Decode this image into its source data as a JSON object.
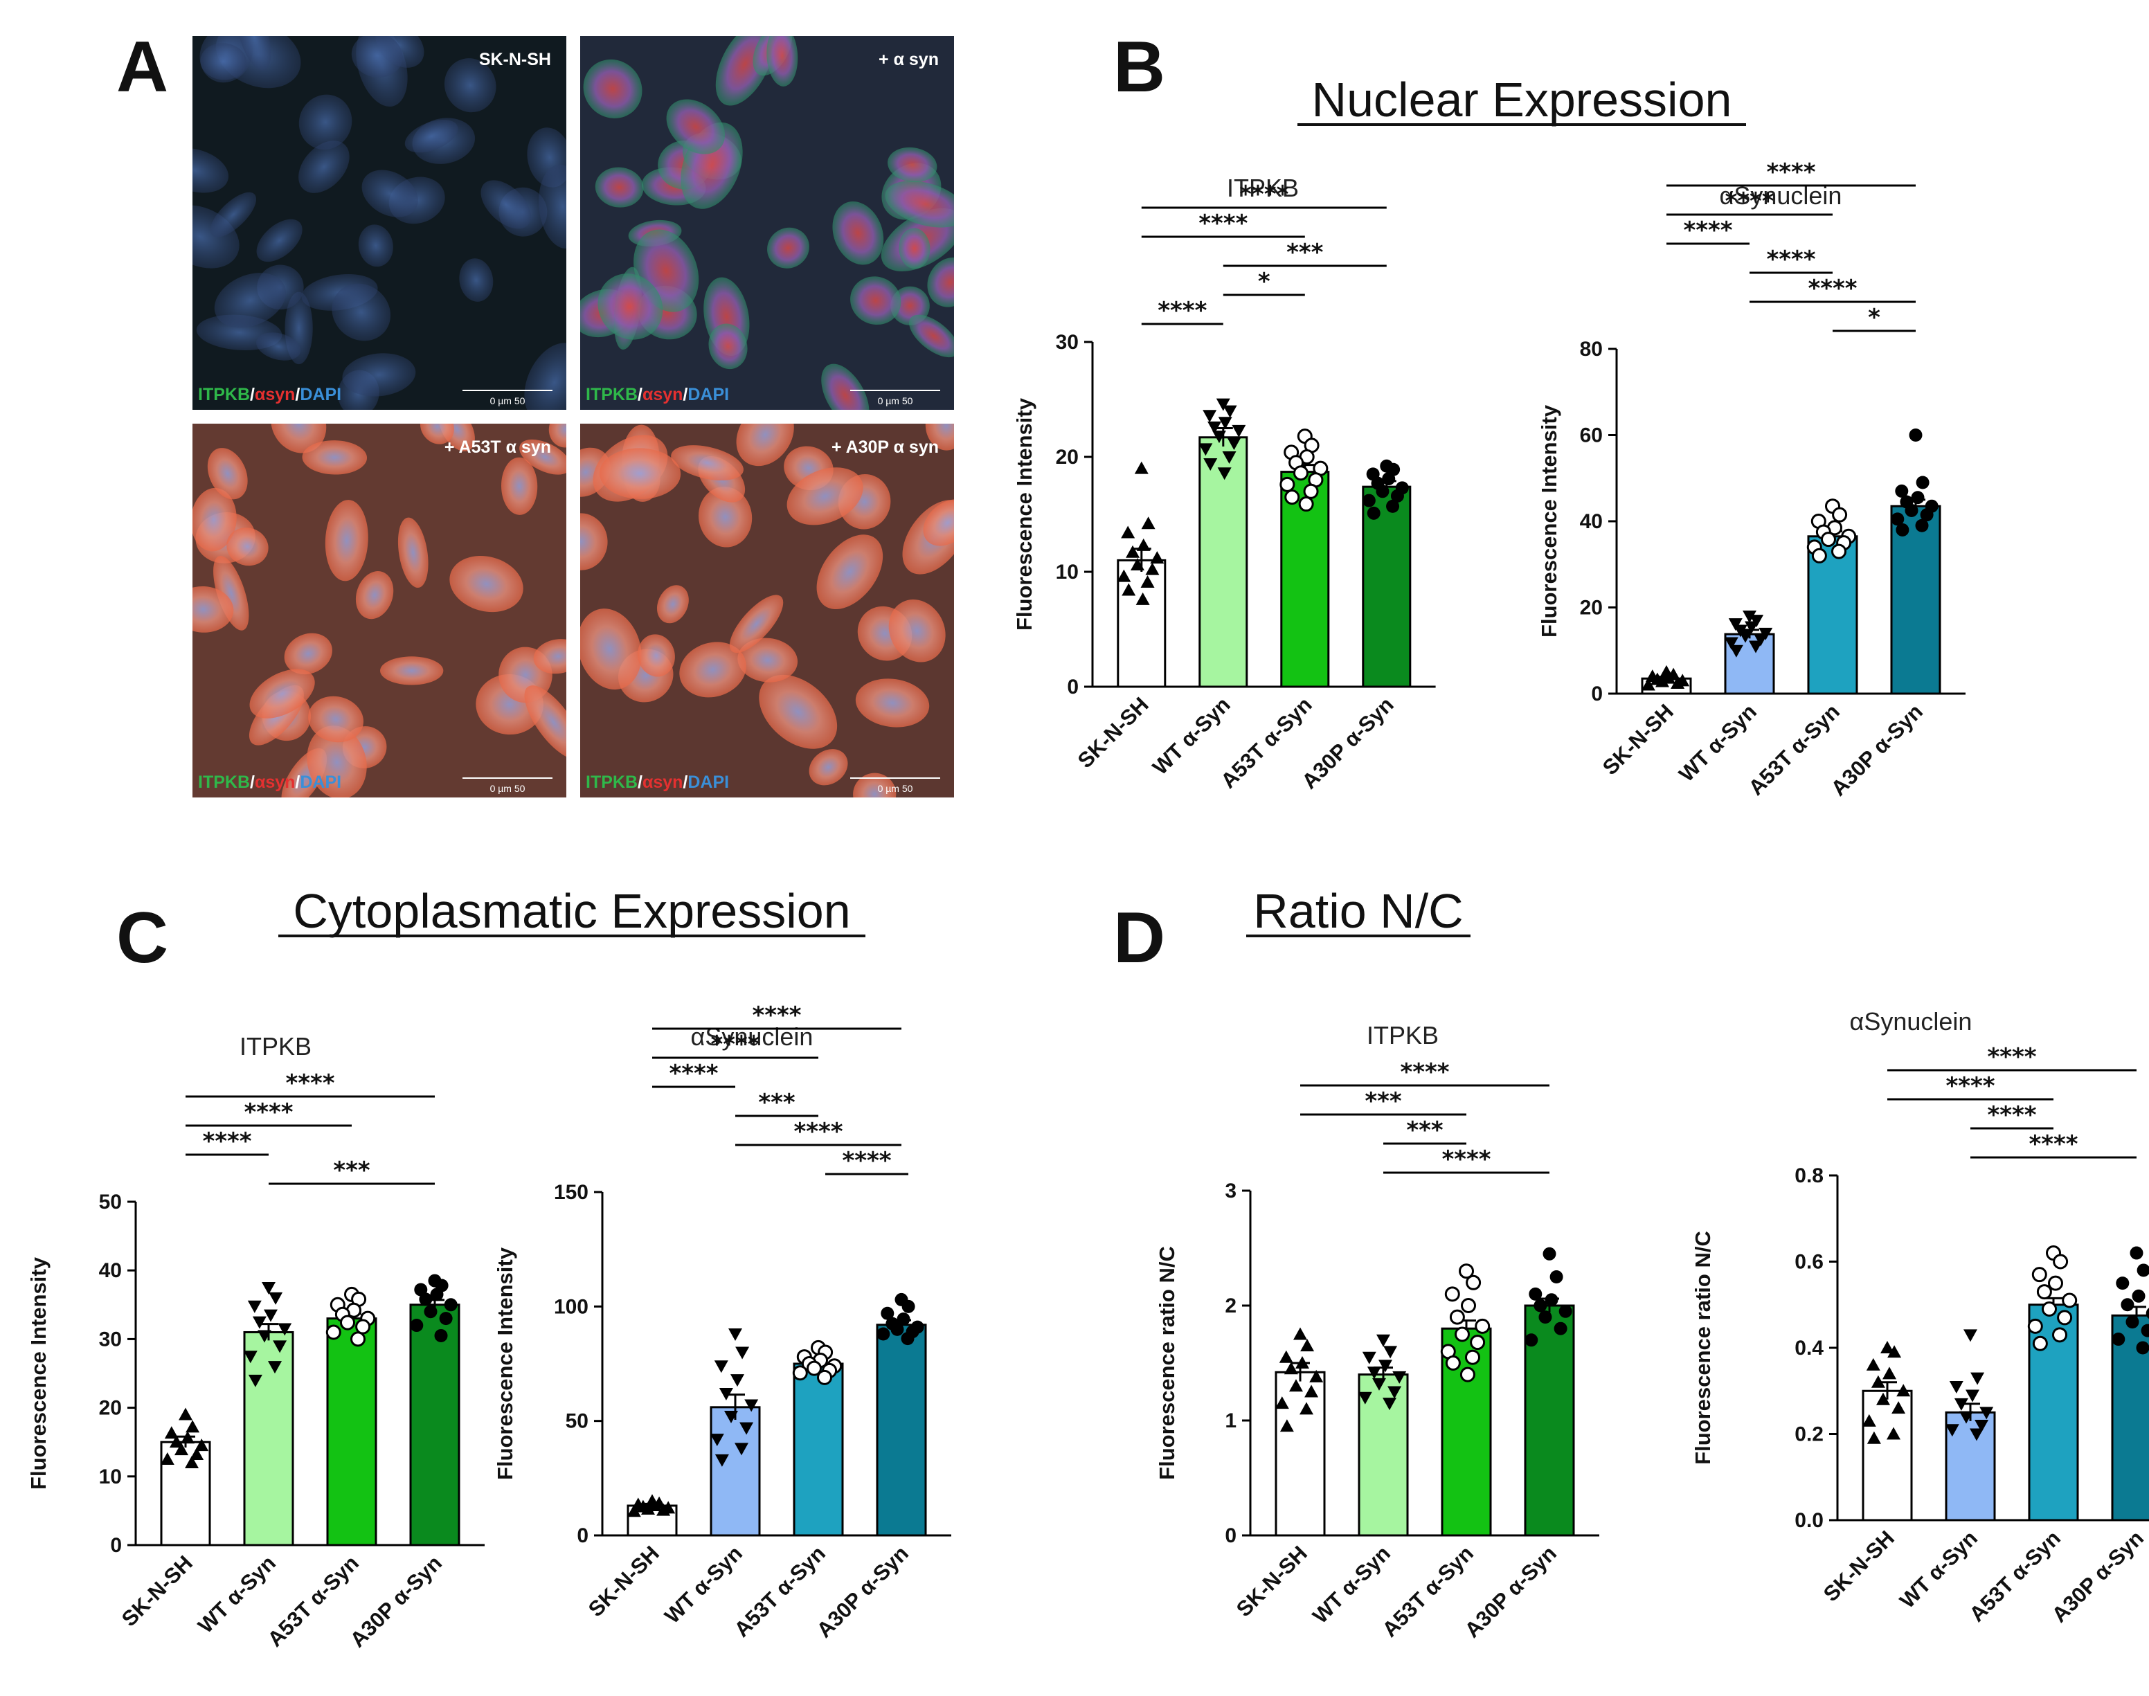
{
  "panels": {
    "a": "A",
    "b": "B",
    "c": "C",
    "d": "D"
  },
  "sections": {
    "nuclear": "Nuclear Expression",
    "cytoplasmatic": "Cytoplasmatic Expression",
    "ratio": "Ratio N/C"
  },
  "micrographs": [
    {
      "label": "SK-N-SH",
      "scale": "0  µm  50",
      "stain": [
        "ITPKB",
        "/",
        "αsyn",
        "/",
        "DAPI"
      ],
      "tint": "#1e2f3a"
    },
    {
      "label": "+ α syn",
      "scale": "0  µm  50",
      "stain": [
        "ITPKB",
        "/",
        "αsyn",
        "/",
        "DAPI"
      ],
      "tint": "#3d4a6a"
    },
    {
      "label": "+ A53T α syn",
      "scale": "0  µm  50",
      "stain": [
        "ITPKB",
        "/",
        "αsyn",
        "/",
        "DAPI"
      ],
      "tint": "#b56a5a"
    },
    {
      "label": "+ A30P α syn",
      "scale": "0  µm  50",
      "stain": [
        "ITPKB",
        "/",
        "αsyn",
        "/",
        "DAPI"
      ],
      "tint": "#a86558"
    }
  ],
  "stain_colors": [
    "#2fb84a",
    "#ffffff",
    "#e53030",
    "#ffffff",
    "#3a8fd8"
  ],
  "chart_data": [
    {
      "type": "bar",
      "title": "ITPKB",
      "ylabel": "Fluorescence Intensity",
      "categories": [
        "SK-N-SH",
        "WT α-Syn",
        "A53T α-Syn",
        "A30P α-Syn"
      ],
      "values": [
        11,
        21.7,
        18.7,
        17.4
      ],
      "errors": [
        1.0,
        0.8,
        0.6,
        0.5
      ],
      "colors": [
        "#ffffff",
        "#a6f5a0",
        "#13c213",
        "#0a8a1e"
      ],
      "markers": [
        "triangle-up",
        "triangle-down",
        "circle-open",
        "circle"
      ],
      "points": [
        [
          19,
          14.2,
          13.4,
          12.3,
          11.7,
          11.2,
          10.6,
          10.2,
          9.6,
          9.1,
          8.4,
          7.6
        ],
        [
          24.6,
          24,
          23.6,
          23,
          22.6,
          22.3,
          21.8,
          21.2,
          20.7,
          20,
          19.4,
          18.6
        ],
        [
          21.8,
          21,
          20.4,
          20,
          19.5,
          19,
          18.6,
          18,
          17.6,
          17,
          16.5,
          15.9
        ],
        [
          19.2,
          18.9,
          18.5,
          18.1,
          17.7,
          17.3,
          17,
          16.6,
          16.2,
          15.7,
          15.1
        ]
      ],
      "ylim": [
        0,
        30
      ],
      "yticks": [
        0,
        10,
        20,
        30
      ],
      "comparisons": [
        {
          "from": 0,
          "to": 1,
          "stars": "****"
        },
        {
          "from": 1,
          "to": 2,
          "stars": "*"
        },
        {
          "from": 1,
          "to": 3,
          "stars": "***"
        },
        {
          "from": 0,
          "to": 2,
          "stars": "****"
        },
        {
          "from": 0,
          "to": 3,
          "stars": "****"
        }
      ]
    },
    {
      "type": "bar",
      "title": "αSynuclein",
      "ylabel": "Fluorescence Intensity",
      "categories": [
        "SK-N-SH",
        "WT α-Syn",
        "A53T α-Syn",
        "A30P α-Syn"
      ],
      "values": [
        3.5,
        13.8,
        36.5,
        43.5
      ],
      "errors": [
        0.4,
        1.0,
        1.2,
        1.5
      ],
      "colors": [
        "#ffffff",
        "#8fb8f5",
        "#1ea2c0",
        "#0b7a92"
      ],
      "markers": [
        "triangle-up",
        "triangle-down",
        "circle-open",
        "circle"
      ],
      "points": [
        [
          5,
          4.4,
          4,
          3.6,
          3.3,
          3,
          2.8,
          2.4,
          2
        ],
        [
          18,
          17,
          16.2,
          15.5,
          14.7,
          14,
          13.4,
          12.6,
          11.8,
          11,
          10
        ],
        [
          43.5,
          41.5,
          40,
          38.5,
          37.5,
          36.5,
          35.8,
          35,
          34,
          33,
          32
        ],
        [
          60,
          49,
          47,
          45.5,
          44.5,
          43.5,
          42.5,
          41.5,
          40.5,
          39,
          38
        ]
      ],
      "ylim": [
        0,
        80
      ],
      "yticks": [
        0,
        20,
        40,
        60,
        80
      ],
      "comparisons": [
        {
          "from": 2,
          "to": 3,
          "stars": "*"
        },
        {
          "from": 1,
          "to": 3,
          "stars": "****"
        },
        {
          "from": 1,
          "to": 2,
          "stars": "****"
        },
        {
          "from": 0,
          "to": 1,
          "stars": "****"
        },
        {
          "from": 0,
          "to": 2,
          "stars": "****"
        },
        {
          "from": 0,
          "to": 3,
          "stars": "****"
        }
      ]
    },
    {
      "type": "bar",
      "title": "ITPKB",
      "ylabel": "Fluorescence Intensity",
      "categories": [
        "SK-N-SH",
        "WT α-Syn",
        "A53T α-Syn",
        "A30P α-Syn"
      ],
      "values": [
        15,
        31,
        33,
        35
      ],
      "errors": [
        0.8,
        1.2,
        0.7,
        0.7
      ],
      "colors": [
        "#ffffff",
        "#a6f5a0",
        "#13c213",
        "#0a8a1e"
      ],
      "markers": [
        "triangle-up",
        "triangle-down",
        "circle-open",
        "circle"
      ],
      "points": [
        [
          19,
          17.2,
          16.3,
          15.6,
          15,
          14.5,
          13.9,
          13.2,
          12.5,
          12
        ],
        [
          37.5,
          36,
          34.8,
          33.5,
          32.5,
          31.5,
          30.5,
          29,
          27.5,
          26,
          24
        ],
        [
          36.5,
          35.8,
          35,
          34.2,
          33.6,
          33,
          32.4,
          31.8,
          31,
          30
        ],
        [
          38.5,
          37.8,
          37.2,
          36.5,
          35.8,
          35,
          34,
          33,
          32,
          30.5
        ]
      ],
      "ylim": [
        0,
        50
      ],
      "yticks": [
        0,
        10,
        20,
        30,
        40,
        50
      ],
      "comparisons": [
        {
          "from": 1,
          "to": 3,
          "stars": "***"
        },
        {
          "from": 0,
          "to": 1,
          "stars": "****"
        },
        {
          "from": 0,
          "to": 2,
          "stars": "****"
        },
        {
          "from": 0,
          "to": 3,
          "stars": "****"
        }
      ]
    },
    {
      "type": "bar",
      "title": "αSynuclein",
      "ylabel": "Fluorescence Intensity",
      "categories": [
        "SK-N-SH",
        "WT α-Syn",
        "A53T α-Syn",
        "A30P α-Syn"
      ],
      "values": [
        13,
        56,
        75,
        92
      ],
      "errors": [
        0.8,
        5.5,
        1.5,
        2.0
      ],
      "colors": [
        "#ffffff",
        "#8fb8f5",
        "#1ea2c0",
        "#0b7a92"
      ],
      "markers": [
        "triangle-up",
        "triangle-down",
        "circle-open",
        "circle"
      ],
      "points": [
        [
          15,
          14,
          13.5,
          13,
          12.5,
          12,
          11.5,
          11,
          10.5
        ],
        [
          88,
          80,
          74,
          68,
          62,
          57,
          52,
          47,
          42,
          38,
          33
        ],
        [
          82,
          80,
          78,
          76.5,
          75,
          74,
          73,
          72,
          71,
          69
        ],
        [
          103,
          100,
          97,
          94.5,
          92.5,
          91,
          90,
          89,
          88,
          86
        ]
      ],
      "ylim": [
        0,
        150
      ],
      "yticks": [
        0,
        50,
        100,
        150
      ],
      "comparisons": [
        {
          "from": 3,
          "to": 3.5,
          "stars": "****"
        },
        {
          "from": 1,
          "to": 3,
          "stars": "****"
        },
        {
          "from": 1,
          "to": 2,
          "stars": "***"
        },
        {
          "from": 0,
          "to": 1,
          "stars": "****"
        },
        {
          "from": 0,
          "to": 2,
          "stars": "****"
        },
        {
          "from": 0,
          "to": 3,
          "stars": "****"
        }
      ]
    },
    {
      "type": "bar",
      "title": "ITPKB",
      "ylabel": "Fluorescence ratio N/C",
      "categories": [
        "SK-N-SH",
        "WT α-Syn",
        "A53T α-Syn",
        "A30P α-Syn"
      ],
      "values": [
        1.42,
        1.4,
        1.8,
        2.0
      ],
      "errors": [
        0.08,
        0.06,
        0.07,
        0.06
      ],
      "colors": [
        "#ffffff",
        "#a6f5a0",
        "#13c213",
        "#0a8a1e"
      ],
      "markers": [
        "triangle-up",
        "triangle-down",
        "circle-open",
        "circle"
      ],
      "points": [
        [
          1.75,
          1.65,
          1.55,
          1.5,
          1.45,
          1.38,
          1.3,
          1.25,
          1.15,
          1.1,
          0.95
        ],
        [
          1.7,
          1.6,
          1.55,
          1.48,
          1.42,
          1.38,
          1.32,
          1.25,
          1.2,
          1.15
        ],
        [
          2.3,
          2.2,
          2.1,
          2.0,
          1.9,
          1.82,
          1.75,
          1.68,
          1.6,
          1.55,
          1.5,
          1.4
        ],
        [
          2.45,
          2.25,
          2.1,
          2.05,
          2.0,
          1.95,
          1.9,
          1.8,
          1.7
        ]
      ],
      "ylim": [
        0,
        3
      ],
      "yticks": [
        0,
        1,
        2,
        3
      ],
      "comparisons": [
        {
          "from": 1,
          "to": 3,
          "stars": "****"
        },
        {
          "from": 1,
          "to": 2,
          "stars": "***"
        },
        {
          "from": 0,
          "to": 2,
          "stars": "***"
        },
        {
          "from": 0,
          "to": 3,
          "stars": "****"
        }
      ]
    },
    {
      "type": "bar",
      "title": "αSynuclein",
      "ylabel": "Fluorescence ratio N/C",
      "categories": [
        "SK-N-SH",
        "WT α-Syn",
        "A53T α-Syn",
        "A30P α-Syn"
      ],
      "values": [
        0.3,
        0.25,
        0.5,
        0.475
      ],
      "errors": [
        0.02,
        0.02,
        0.015,
        0.02
      ],
      "colors": [
        "#ffffff",
        "#8fb8f5",
        "#1ea2c0",
        "#0b7a92"
      ],
      "markers": [
        "triangle-up",
        "triangle-down",
        "circle-open",
        "circle"
      ],
      "points": [
        [
          0.4,
          0.39,
          0.36,
          0.34,
          0.32,
          0.3,
          0.28,
          0.26,
          0.23,
          0.2,
          0.19
        ],
        [
          0.43,
          0.33,
          0.31,
          0.29,
          0.27,
          0.25,
          0.24,
          0.22,
          0.21,
          0.2
        ],
        [
          0.62,
          0.6,
          0.57,
          0.55,
          0.53,
          0.51,
          0.49,
          0.47,
          0.45,
          0.43,
          0.41
        ],
        [
          0.62,
          0.58,
          0.55,
          0.52,
          0.5,
          0.48,
          0.46,
          0.44,
          0.42,
          0.4
        ]
      ],
      "ylim": [
        0,
        0.8
      ],
      "yticks": [
        0.0,
        0.2,
        0.4,
        0.6,
        0.8
      ],
      "comparisons": [
        {
          "from": 1,
          "to": 3,
          "stars": "****"
        },
        {
          "from": 1,
          "to": 2,
          "stars": "****"
        },
        {
          "from": 0,
          "to": 2,
          "stars": "****"
        },
        {
          "from": 0,
          "to": 3,
          "stars": "****"
        }
      ]
    }
  ]
}
